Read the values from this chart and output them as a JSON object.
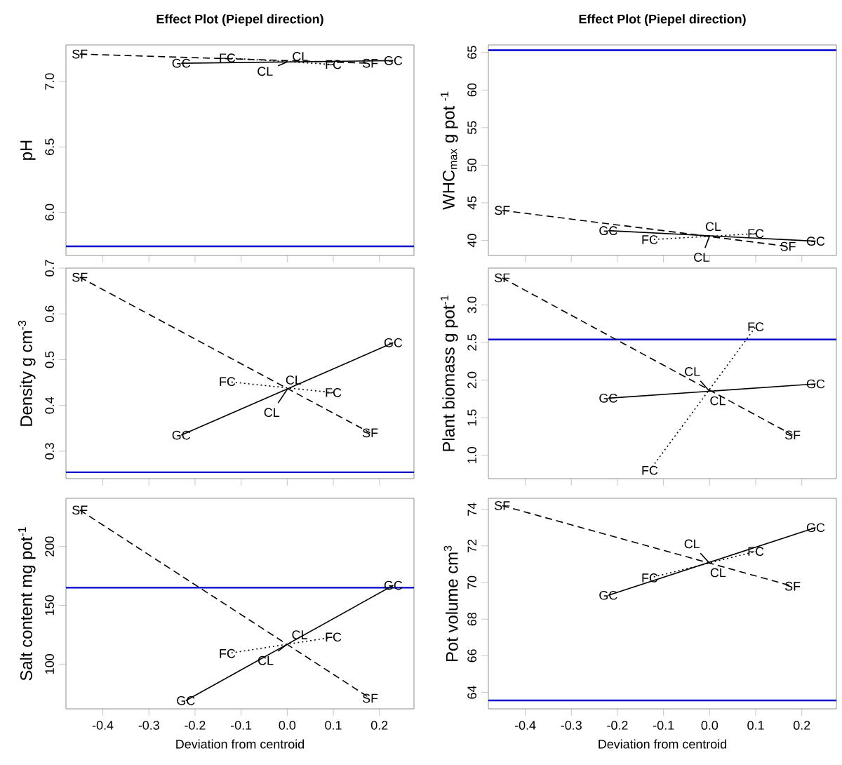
{
  "chart_data": [
    {
      "type": "line",
      "title": "Effect Plot (Piepel direction)",
      "ylabel": "pH",
      "xlim": [
        -0.48,
        0.275
      ],
      "xticks": [
        -0.4,
        -0.3,
        -0.2,
        -0.1,
        0,
        0.1,
        0.2
      ],
      "ylim": [
        5.67,
        7.28
      ],
      "yticks": [
        {
          "value": 6,
          "label": "6.0"
        },
        6.5,
        {
          "value": 7,
          "label": "7.0"
        }
      ],
      "tick_labels": "y",
      "series": [
        {
          "name": "SF",
          "color": "#000000",
          "line_style": "dashed",
          "x": [
            -0.45,
            0.18
          ],
          "values": [
            7.21,
            7.14
          ]
        },
        {
          "name": "GC",
          "color": "#000000",
          "line_style": "solid",
          "x": [
            -0.23,
            0.23
          ],
          "values": [
            7.14,
            7.16
          ]
        },
        {
          "name": "FC",
          "color": "#000000",
          "line_style": "dotted",
          "x": [
            -0.13,
            0.1
          ],
          "values": [
            7.18,
            7.13
          ]
        },
        {
          "name": "CL",
          "color": "#000000",
          "line_style": "solid",
          "x": [
            -0.02,
            0
          ],
          "values": [
            7.12,
            7.15
          ]
        }
      ],
      "ref_lines": [
        {
          "axis": "y",
          "value": 5.74,
          "color": "#0000cc"
        }
      ]
    },
    {
      "type": "line",
      "title": "Effect Plot (Piepel direction)",
      "ylabel": "WHC$_{max}$ g pot $^{-1}$",
      "xlim": [
        -0.48,
        0.275
      ],
      "xticks": [
        -0.4,
        -0.3,
        -0.2,
        -0.1,
        0,
        0.1,
        0.2
      ],
      "ylim": [
        38,
        66
      ],
      "yticks": [
        40,
        45,
        50,
        55,
        60,
        65
      ],
      "tick_labels": "y",
      "series": [
        {
          "name": "SF",
          "color": "#000000",
          "line_style": "dashed",
          "x": [
            -0.45,
            0.17
          ],
          "values": [
            44.0,
            39.2
          ]
        },
        {
          "name": "GC",
          "color": "#000000",
          "line_style": "solid",
          "x": [
            -0.22,
            0.23
          ],
          "values": [
            41.3,
            39.9
          ]
        },
        {
          "name": "FC",
          "color": "#000000",
          "line_style": "dotted",
          "x": [
            -0.13,
            0.1
          ],
          "values": [
            40.1,
            40.9
          ]
        },
        {
          "name": "CL",
          "color": "#000000",
          "line_style": "solid",
          "x": [
            -0.01,
            0
          ],
          "values": [
            39.0,
            40.6
          ]
        }
      ],
      "ref_lines": [
        {
          "axis": "y",
          "value": 65.3,
          "color": "#0000cc"
        }
      ]
    },
    {
      "type": "line",
      "ylabel": "Density g cm$^{-3}$",
      "xlim": [
        -0.48,
        0.275
      ],
      "xticks": [
        -0.4,
        -0.3,
        -0.2,
        -0.1,
        0,
        0.1,
        0.2
      ],
      "ylim": [
        0.24,
        0.7
      ],
      "yticks": [
        0.3,
        0.4,
        0.5,
        0.6,
        0.7
      ],
      "tick_labels": "y",
      "series": [
        {
          "name": "SF",
          "color": "#000000",
          "line_style": "dashed",
          "x": [
            -0.45,
            0.18
          ],
          "values": [
            0.68,
            0.34
          ]
        },
        {
          "name": "GC",
          "color": "#000000",
          "line_style": "solid",
          "x": [
            -0.23,
            0.23
          ],
          "values": [
            0.335,
            0.537
          ]
        },
        {
          "name": "FC",
          "color": "#000000",
          "line_style": "dotted",
          "x": [
            -0.13,
            0.1
          ],
          "values": [
            0.452,
            0.428
          ]
        },
        {
          "name": "CL",
          "color": "#000000",
          "line_style": "solid",
          "x": [
            -0.02,
            0
          ],
          "values": [
            0.405,
            0.435
          ]
        }
      ],
      "ref_lines": [
        {
          "axis": "y",
          "value": 0.254,
          "color": "#0000cc"
        }
      ]
    },
    {
      "type": "line",
      "ylabel": "Plant biomass g pot$^{-1}$",
      "xlim": [
        -0.48,
        0.275
      ],
      "xticks": [
        -0.4,
        -0.3,
        -0.2,
        -0.1,
        0,
        0.1,
        0.2
      ],
      "ylim": [
        0.69,
        3.49
      ],
      "yticks": [
        {
          "value": 1,
          "label": "1.0"
        },
        1.5,
        {
          "value": 2,
          "label": "2.0"
        },
        2.5,
        {
          "value": 3,
          "label": "3.0"
        }
      ],
      "tick_labels": "y",
      "series": [
        {
          "name": "SF",
          "color": "#000000",
          "line_style": "dashed",
          "x": [
            -0.45,
            0.18
          ],
          "values": [
            3.36,
            1.27
          ]
        },
        {
          "name": "GC",
          "color": "#000000",
          "line_style": "solid",
          "x": [
            -0.22,
            0.23
          ],
          "values": [
            1.76,
            1.95
          ]
        },
        {
          "name": "FC",
          "color": "#000000",
          "line_style": "dotted",
          "x": [
            -0.13,
            0.1
          ],
          "values": [
            0.8,
            2.71
          ]
        },
        {
          "name": "CL",
          "color": "#000000",
          "line_style": "solid",
          "x": [
            -0.02,
            0
          ],
          "values": [
            1.99,
            1.85
          ]
        }
      ],
      "ref_lines": [
        {
          "axis": "y",
          "value": 2.54,
          "color": "#0000cc"
        }
      ]
    },
    {
      "type": "line",
      "xlabel": "Deviation from centroid",
      "ylabel": "Salt content mg pot$^{-1}$",
      "xlim": [
        -0.48,
        0.275
      ],
      "xticks": [
        -0.4,
        -0.3,
        -0.2,
        -0.1,
        {
          "value": 0,
          "label": "0.0"
        },
        0.1,
        0.2
      ],
      "ylim": [
        62,
        241
      ],
      "yticks": [
        100,
        150,
        200
      ],
      "series": [
        {
          "name": "SF",
          "color": "#000000",
          "line_style": "dashed",
          "x": [
            -0.45,
            0.18
          ],
          "values": [
            231,
            71
          ]
        },
        {
          "name": "GC",
          "color": "#000000",
          "line_style": "solid",
          "x": [
            -0.22,
            0.23
          ],
          "values": [
            69,
            167
          ]
        },
        {
          "name": "FC",
          "color": "#000000",
          "line_style": "dotted",
          "x": [
            -0.13,
            0.1
          ],
          "values": [
            109,
            123
          ]
        },
        {
          "name": "CL",
          "color": "#000000",
          "line_style": "solid",
          "x": [
            -0.02,
            0
          ],
          "values": [
            111,
            117
          ]
        }
      ],
      "ref_lines": [
        {
          "axis": "y",
          "value": 165,
          "color": "#0000cc"
        }
      ]
    },
    {
      "type": "line",
      "xlabel": "Deviation from centroid",
      "ylabel": "Pot  volume cm$^{3}$",
      "xlim": [
        -0.48,
        0.275
      ],
      "xticks": [
        -0.4,
        -0.3,
        -0.2,
        -0.1,
        {
          "value": 0,
          "label": "0.0"
        },
        0.1,
        0.2
      ],
      "ylim": [
        63.1,
        74.6
      ],
      "yticks": [
        64,
        66,
        68,
        70,
        72,
        74
      ],
      "series": [
        {
          "name": "SF",
          "color": "#000000",
          "line_style": "dashed",
          "x": [
            -0.45,
            0.18
          ],
          "values": [
            74.2,
            69.8
          ]
        },
        {
          "name": "GC",
          "color": "#000000",
          "line_style": "solid",
          "x": [
            -0.22,
            0.23
          ],
          "values": [
            69.3,
            73.0
          ]
        },
        {
          "name": "FC",
          "color": "#000000",
          "line_style": "dotted",
          "x": [
            -0.13,
            0.1
          ],
          "values": [
            70.25,
            71.7
          ]
        },
        {
          "name": "CL",
          "color": "#000000",
          "line_style": "solid",
          "x": [
            -0.02,
            0
          ],
          "values": [
            71.6,
            71.05
          ]
        }
      ],
      "ref_lines": [
        {
          "axis": "y",
          "value": 63.56,
          "color": "#0000cc"
        }
      ]
    }
  ]
}
